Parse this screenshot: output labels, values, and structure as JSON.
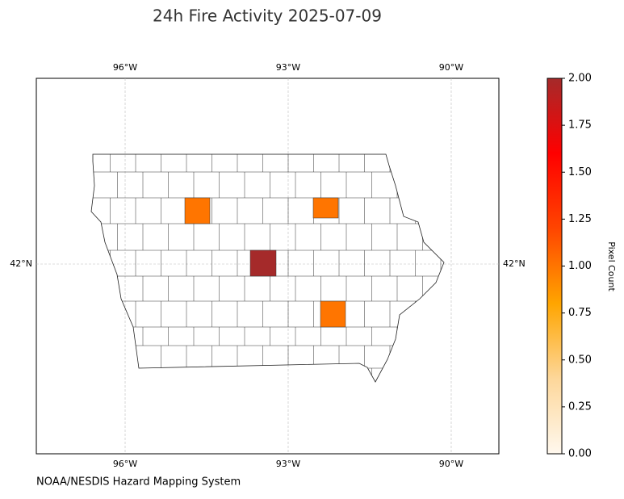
{
  "map": {
    "title": "24h Fire Activity 2025-07-09",
    "source": "NOAA/NESDIS Hazard Mapping System",
    "lon_ticks": [
      {
        "value": -96,
        "label": "96°W"
      },
      {
        "value": -93,
        "label": "93°W"
      },
      {
        "value": -90,
        "label": "90°W"
      }
    ],
    "lat_ticks": [
      {
        "value": 42,
        "label": "42°N"
      }
    ],
    "grid": true,
    "region_values": [
      1,
      1,
      2,
      1
    ],
    "colorbar": {
      "label": "Pixel Count",
      "lim": [
        0,
        2
      ],
      "ticks": [
        {
          "value": 0,
          "label": "0.00"
        },
        {
          "value": 0.25,
          "label": "0.25"
        },
        {
          "value": 0.5,
          "label": "0.50"
        },
        {
          "value": 0.75,
          "label": "0.75"
        },
        {
          "value": 1,
          "label": "1.00"
        },
        {
          "value": 1.25,
          "label": "1.25"
        },
        {
          "value": 1.5,
          "label": "1.50"
        },
        {
          "value": 1.75,
          "label": "1.75"
        },
        {
          "value": 2,
          "label": "2.00"
        }
      ],
      "colors": [
        "#fff8ee",
        "#fdd79a",
        "#ffa500",
        "#ff4500",
        "#ff0000",
        "#a52a2a"
      ]
    }
  }
}
